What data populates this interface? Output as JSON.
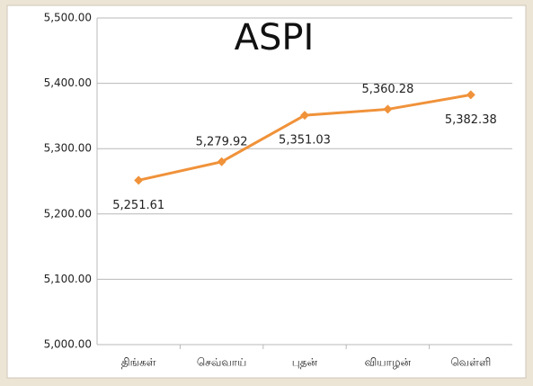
{
  "chart_data": {
    "type": "line",
    "title": "ASPI",
    "categories": [
      "திங்கள்",
      "செவ்வாய்",
      "புதன்",
      "வியாழன்",
      "வெள்ளி"
    ],
    "series": [
      {
        "name": "ASPI",
        "color": "#f0923a",
        "values": [
          5251.61,
          5279.92,
          5351.03,
          5360.28,
          5382.38
        ],
        "value_labels": [
          "5,251.61",
          "5,279.92",
          "5,351.03",
          "5,360.28",
          "5,382.38"
        ]
      }
    ],
    "ylim": [
      5000,
      5500
    ],
    "yticks": [
      {
        "value": 5000,
        "label": "5,000.00"
      },
      {
        "value": 5100,
        "label": "5,100.00"
      },
      {
        "value": 5200,
        "label": "5,200.00"
      },
      {
        "value": 5300,
        "label": "5,300.00"
      },
      {
        "value": 5400,
        "label": "5,400.00"
      },
      {
        "value": 5500,
        "label": "5,500.00"
      }
    ],
    "grid": true
  }
}
